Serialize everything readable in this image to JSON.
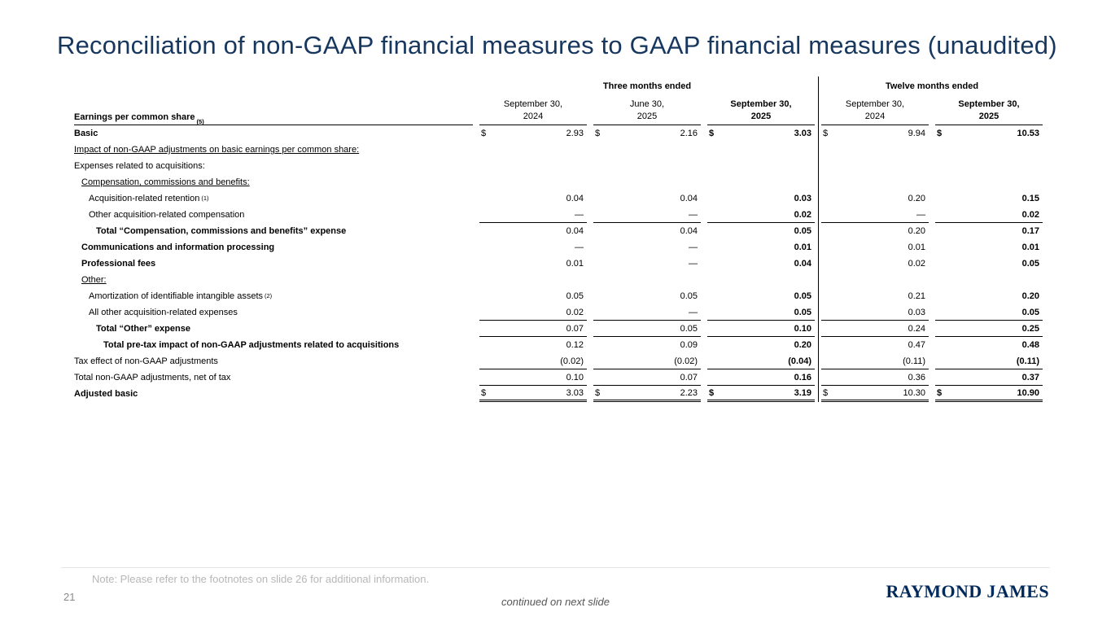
{
  "slide": {
    "title": "Reconciliation of non-GAAP financial measures to GAAP financial measures (unaudited)",
    "page_number": "21",
    "note": "Note: Please refer to the footnotes on slide 26 for additional information.",
    "continued_text": "continued on next slide",
    "brand": "RAYMOND JAMES"
  },
  "table": {
    "group_headers": [
      {
        "label": "Three months ended",
        "start": 2,
        "span": 3
      },
      {
        "label": "Twelve months ended",
        "start": 5,
        "span": 2
      }
    ],
    "header": {
      "row_label": "Earnings per common share",
      "row_label_sup": "(5)",
      "columns": [
        {
          "line1": "September 30,",
          "line2": "2024",
          "bold": false
        },
        {
          "line1": "June 30,",
          "line2": "2025",
          "bold": false
        },
        {
          "line1": "September 30,",
          "line2": "2025",
          "bold": true
        },
        {
          "line1": "September 30,",
          "line2": "2024",
          "bold": false
        },
        {
          "line1": "September 30,",
          "line2": "2025",
          "bold": true
        }
      ]
    },
    "rows": [
      {
        "label": "Basic",
        "indent": 0,
        "bold": true,
        "dollar": true,
        "values": [
          "2.93",
          "2.16",
          "3.03",
          "9.94",
          "10.53"
        ]
      },
      {
        "label": "Impact of non-GAAP adjustments on basic earnings per common share:",
        "indent": 0,
        "underline": true,
        "values": null
      },
      {
        "label": "Expenses related to acquisitions:",
        "indent": 0,
        "values": null
      },
      {
        "label": "Compensation, commissions and benefits:",
        "indent": 1,
        "underline": true,
        "values": null
      },
      {
        "label": "Acquisition-related retention",
        "sup": "(1)",
        "indent": 2,
        "values": [
          "0.04",
          "0.04",
          "0.03",
          "0.20",
          "0.15"
        ]
      },
      {
        "label": "Other acquisition-related compensation",
        "indent": 2,
        "rule_below": true,
        "values": [
          "—",
          "—",
          "0.02",
          "—",
          "0.02"
        ]
      },
      {
        "label": "Total “Compensation, commissions and benefits” expense",
        "indent": 3,
        "bold": true,
        "values": [
          "0.04",
          "0.04",
          "0.05",
          "0.20",
          "0.17"
        ]
      },
      {
        "label": "Communications and information processing",
        "indent": 1,
        "bold": true,
        "values": [
          "—",
          "—",
          "0.01",
          "0.01",
          "0.01"
        ]
      },
      {
        "label": "Professional fees",
        "indent": 1,
        "bold": true,
        "values": [
          "0.01",
          "—",
          "0.04",
          "0.02",
          "0.05"
        ]
      },
      {
        "label": "Other:",
        "indent": 1,
        "underline": true,
        "values": null
      },
      {
        "label": "Amortization of identifiable intangible assets",
        "sup": "(2)",
        "indent": 2,
        "values": [
          "0.05",
          "0.05",
          "0.05",
          "0.21",
          "0.20"
        ]
      },
      {
        "label": "All other acquisition-related expenses",
        "indent": 2,
        "rule_below": true,
        "values": [
          "0.02",
          "—",
          "0.05",
          "0.03",
          "0.05"
        ]
      },
      {
        "label": "Total “Other” expense",
        "indent": 3,
        "bold": true,
        "rule_below": true,
        "values": [
          "0.07",
          "0.05",
          "0.10",
          "0.24",
          "0.25"
        ]
      },
      {
        "label": "Total pre-tax impact of non-GAAP adjustments related to acquisitions",
        "indent": 4,
        "bold": true,
        "values": [
          "0.12",
          "0.09",
          "0.20",
          "0.47",
          "0.48"
        ]
      },
      {
        "label": "Tax effect of non-GAAP adjustments",
        "indent": 0,
        "rule_below": true,
        "values": [
          "(0.02)",
          "(0.02)",
          "(0.04)",
          "(0.11)",
          "(0.11)"
        ]
      },
      {
        "label": "Total non-GAAP adjustments, net of tax",
        "indent": 0,
        "rule_below": true,
        "values": [
          "0.10",
          "0.07",
          "0.16",
          "0.36",
          "0.37"
        ]
      },
      {
        "label": "Adjusted basic",
        "indent": 0,
        "bold": true,
        "dollar": true,
        "double_rule_below": true,
        "values": [
          "3.03",
          "2.23",
          "3.19",
          "10.30",
          "10.90"
        ]
      }
    ]
  }
}
